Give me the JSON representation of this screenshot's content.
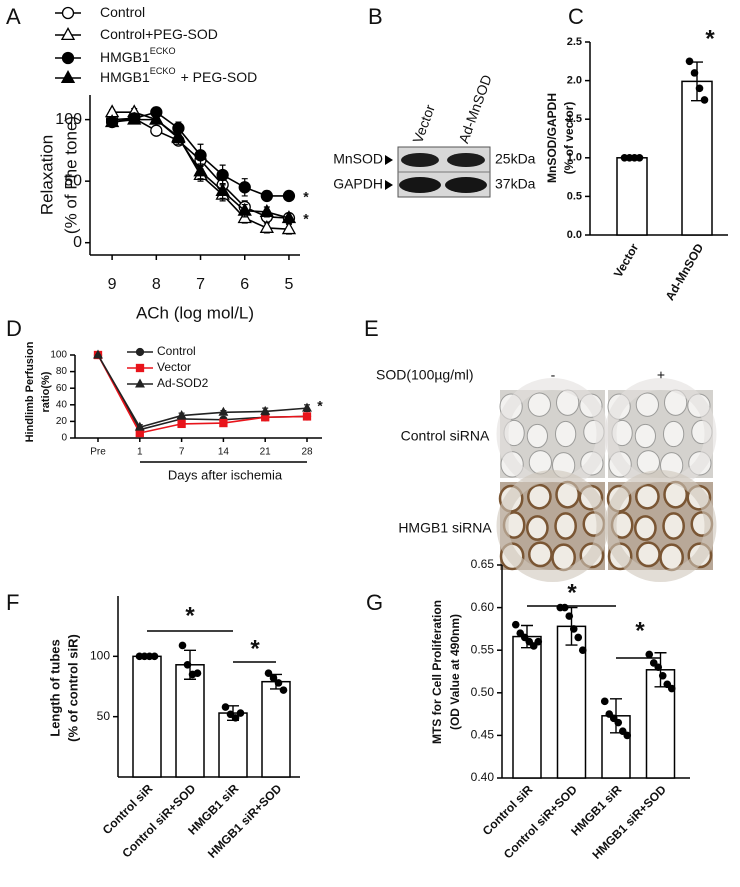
{
  "chart_data": [
    {
      "panel": "A",
      "type": "line",
      "xlabel": "ACh (log mol/L)",
      "ylabel": [
        "Relaxation",
        "(% of Phe tone)"
      ],
      "x": [
        9,
        8.5,
        8,
        7.5,
        7,
        6.5,
        6,
        5.5,
        5
      ],
      "xlim": [
        9.5,
        4.75
      ],
      "xticks": [
        9,
        8,
        7,
        6,
        5
      ],
      "ylim": [
        -10,
        120
      ],
      "yticks": [
        0,
        50,
        100
      ],
      "series": [
        {
          "name": "Control",
          "marker": "circle",
          "filled": false,
          "color": "#000000",
          "values": [
            100,
            101,
            91,
            83,
            67,
            47,
            29,
            21,
            20
          ],
          "errors": [
            3,
            3,
            3,
            4,
            5,
            5,
            5,
            3,
            3
          ]
        },
        {
          "name": "Control+PEG-SOD",
          "marker": "triangle",
          "filled": false,
          "color": "#000000",
          "values": [
            106,
            106,
            100,
            86,
            55,
            39,
            20,
            12,
            11
          ],
          "errors": [
            2,
            3,
            3,
            4,
            5,
            5,
            4,
            4,
            4
          ]
        },
        {
          "name": "HMGB1",
          "name_sup": "ECKO",
          "marker": "circle",
          "filled": true,
          "color": "#000000",
          "values": [
            98,
            101,
            106,
            93,
            71,
            55,
            45,
            38,
            38
          ],
          "errors": [
            3,
            4,
            4,
            5,
            9,
            8,
            7,
            4,
            3
          ]
        },
        {
          "name": "HMGB1",
          "name_sup": "ECKO",
          "name_tail": "+ PEG-SOD",
          "marker": "triangle",
          "filled": true,
          "color": "#000000",
          "values": [
            98,
            100,
            100,
            85,
            58,
            42,
            26,
            25,
            20
          ],
          "errors": [
            3,
            3,
            3,
            5,
            6,
            6,
            5,
            4,
            4
          ]
        }
      ],
      "annotations": [
        "*",
        "*"
      ]
    },
    {
      "panel": "B",
      "type": "blot",
      "lanes": [
        "Vector",
        "Ad-MnSOD"
      ],
      "rows": [
        {
          "label": "MnSOD",
          "size": "25kDa"
        },
        {
          "label": "GAPDH",
          "size": "37kDa"
        }
      ]
    },
    {
      "panel": "C",
      "type": "bar",
      "ylabel": [
        "MnSOD/GAPDH",
        "(% of vector)"
      ],
      "color": "#ffffff",
      "categories": [
        "Vector",
        "Ad-MnSOD"
      ],
      "values": [
        1,
        1.99
      ],
      "errors": [
        0,
        0.25
      ],
      "points": [
        [
          1,
          1,
          1,
          1
        ],
        [
          2.25,
          2.1,
          1.9,
          1.75
        ]
      ],
      "ylim": [
        0,
        2.5
      ],
      "yticks": [
        {
          "value": 0,
          "label": "0.0"
        },
        0.5,
        {
          "value": 1,
          "label": "1.0"
        },
        1.5,
        {
          "value": 2,
          "label": "2.0"
        },
        2.5
      ],
      "annotations": [
        "*"
      ]
    },
    {
      "panel": "D",
      "type": "line",
      "xlabel": "Days after ischemia",
      "ylabel": [
        "Hindlimb Perfusion",
        "ratio(%)"
      ],
      "categories": [
        "Pre",
        "1",
        "7",
        "14",
        "21",
        "28"
      ],
      "ylim": [
        0,
        100
      ],
      "yticks": [
        0,
        20,
        40,
        60,
        80,
        100
      ],
      "series": [
        {
          "name": "Control",
          "marker": "circle",
          "filled": true,
          "color": "#222222",
          "values": [
            100,
            10,
            23,
            22,
            25,
            26
          ],
          "errors": [
            0,
            2,
            3,
            2,
            3,
            3
          ]
        },
        {
          "name": "Vector",
          "marker": "square",
          "filled": true,
          "color": "#e8141b",
          "values": [
            100,
            6,
            17,
            18,
            25,
            26
          ],
          "errors": [
            0,
            1,
            4,
            3,
            3,
            3
          ]
        },
        {
          "name": "Ad-SOD2",
          "marker": "triangle",
          "filled": true,
          "color": "#222222",
          "values": [
            100,
            13,
            27,
            31,
            32,
            36
          ],
          "errors": [
            0,
            3,
            3,
            2,
            4,
            4
          ]
        }
      ],
      "annotations": [
        "*"
      ]
    },
    {
      "panel": "E",
      "type": "image-grid",
      "treatment": "SOD(100µg/ml)",
      "columns": [
        "-",
        "+"
      ],
      "rows": [
        "Control siRNA",
        "HMGB1 siRNA"
      ]
    },
    {
      "panel": "F",
      "type": "bar",
      "ylabel": [
        "Length of tubes",
        "(% of control siR)"
      ],
      "color": "#ffffff",
      "categories": [
        "Control siR",
        "Control siR+SOD",
        "HMGB1 siR",
        "HMGB1 siR+SOD"
      ],
      "values": [
        100,
        93,
        53,
        79
      ],
      "errors": [
        0,
        12,
        6,
        6
      ],
      "points": [
        [
          100,
          100,
          100,
          100
        ],
        [
          109,
          93,
          85,
          86
        ],
        [
          58,
          52,
          49,
          53
        ],
        [
          86,
          82,
          78,
          72
        ]
      ],
      "ylim": [
        0,
        150
      ],
      "yticks": [
        50,
        100
      ],
      "annotations": [
        "*",
        "*"
      ]
    },
    {
      "panel": "G",
      "type": "bar",
      "ylabel": [
        "MTS for Cell Proliferation",
        "(OD Value at 490nm)"
      ],
      "color": "#ffffff",
      "categories": [
        "Control siR",
        "Control siR+SOD",
        "HMGB1 siR",
        "HMGB1 siR+SOD"
      ],
      "values": [
        0.566,
        0.578,
        0.473,
        0.527
      ],
      "errors": [
        0.013,
        0.022,
        0.02,
        0.02
      ],
      "points": [
        [
          0.58,
          0.57,
          0.565,
          0.56,
          0.555,
          0.56
        ],
        [
          0.6,
          0.6,
          0.59,
          0.575,
          0.565,
          0.55
        ],
        [
          0.49,
          0.475,
          0.47,
          0.465,
          0.455,
          0.45
        ],
        [
          0.545,
          0.535,
          0.53,
          0.52,
          0.51,
          0.505
        ]
      ],
      "ylim": [
        0.4,
        0.65
      ],
      "yticks": [
        {
          "value": 0.4,
          "label": "0.40"
        },
        0.45,
        {
          "value": 0.5,
          "label": "0.50"
        },
        0.55,
        {
          "value": 0.6,
          "label": "0.60"
        },
        0.65
      ],
      "annotations": [
        "*",
        "*"
      ]
    }
  ]
}
